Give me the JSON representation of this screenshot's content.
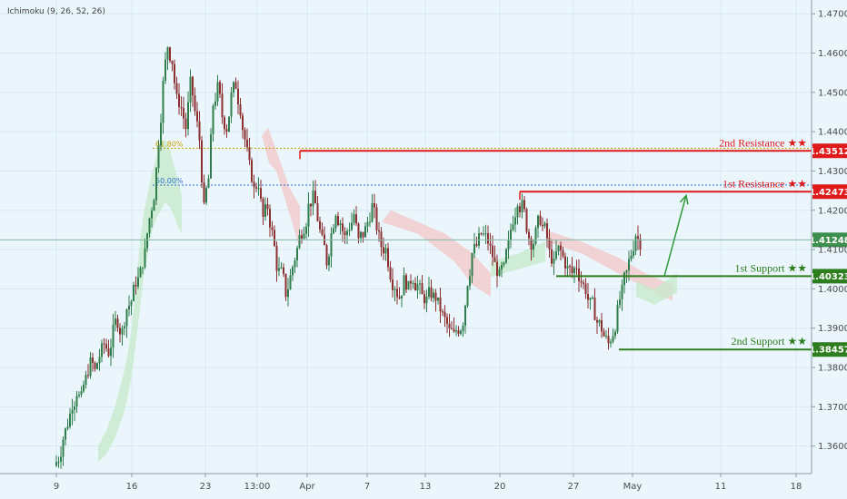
{
  "indicator_label": "Ichimoku (9, 26, 52, 26)",
  "colors": {
    "background": "#eaf6fb",
    "resistance": "#e0191b",
    "support": "#2e7d1e",
    "price_badge": "#3c8f4e",
    "candle_up": "#2f7d4a",
    "candle_down": "#8b2f2f",
    "cloud_green": "#c6e9c9",
    "cloud_red": "#f3c9cc",
    "arrow": "#2e9a3a",
    "fib_618": "#c8a000",
    "fib_50": "#2f6fd0"
  },
  "chart_data": {
    "type": "candlestick",
    "x_axis": {
      "tick_labels": [
        "9",
        "16",
        "23",
        "13:00",
        "Apr",
        "7",
        "13",
        "20",
        "27",
        "May",
        "11",
        "18"
      ]
    },
    "y_axis": {
      "range": [
        1.353,
        1.4735
      ],
      "tick_labels": [
        "1.47000",
        "1.46000",
        "1.45000",
        "1.44000",
        "1.43000",
        "1.42000",
        "1.41000",
        "1.40000",
        "1.39000",
        "1.38000",
        "1.37000",
        "1.36000"
      ],
      "tick_values": [
        1.47,
        1.46,
        1.45,
        1.44,
        1.43,
        1.42,
        1.41,
        1.4,
        1.39,
        1.38,
        1.37,
        1.36
      ]
    },
    "levels": [
      {
        "id": "res2",
        "name": "2nd Resistance ★★",
        "value": 1.43512,
        "badge": "1.43512",
        "kind": "resistance"
      },
      {
        "id": "res1",
        "name": "1st Resistance ★★",
        "value": 1.42473,
        "badge": "1.42473",
        "kind": "resistance"
      },
      {
        "id": "sup1",
        "name": "1st Support ★★",
        "value": 1.40323,
        "badge": "1.40323",
        "kind": "support"
      },
      {
        "id": "sup2",
        "name": "2nd Support ★★",
        "value": 1.38457,
        "badge": "1.38457",
        "kind": "support"
      }
    ],
    "current_price": {
      "value": 1.41248,
      "badge": "1.41248"
    },
    "fib_levels": [
      {
        "label": "61.80%",
        "value": 1.4358
      },
      {
        "label": "50.00%",
        "value": 1.4264
      }
    ],
    "price_path": [
      1.357,
      1.362,
      1.366,
      1.371,
      1.374,
      1.372,
      1.377,
      1.381,
      1.379,
      1.383,
      1.386,
      1.384,
      1.389,
      1.392,
      1.389,
      1.395,
      1.397,
      1.402,
      1.404,
      1.409,
      1.418,
      1.424,
      1.438,
      1.452,
      1.462,
      1.458,
      1.448,
      1.446,
      1.441,
      1.452,
      1.445,
      1.438,
      1.42,
      1.428,
      1.447,
      1.451,
      1.444,
      1.441,
      1.449,
      1.452,
      1.446,
      1.438,
      1.431,
      1.425,
      1.427,
      1.418,
      1.421,
      1.414,
      1.406,
      1.404,
      1.399,
      1.403,
      1.408,
      1.413,
      1.416,
      1.421,
      1.423,
      1.418,
      1.412,
      1.407,
      1.414,
      1.42,
      1.417,
      1.413,
      1.416,
      1.419,
      1.412,
      1.414,
      1.417,
      1.421,
      1.416,
      1.411,
      1.41,
      1.404,
      1.401,
      1.398,
      1.402,
      1.4,
      1.403,
      1.401,
      1.398,
      1.397,
      1.399,
      1.398,
      1.395,
      1.392,
      1.389,
      1.388,
      1.39,
      1.392,
      1.402,
      1.409,
      1.411,
      1.414,
      1.413,
      1.41,
      1.406,
      1.403,
      1.405,
      1.411,
      1.418,
      1.423,
      1.421,
      1.416,
      1.412,
      1.414,
      1.418,
      1.415,
      1.409,
      1.406,
      1.41,
      1.408,
      1.405,
      1.404,
      1.406,
      1.402,
      1.4,
      1.396,
      1.394,
      1.391,
      1.388,
      1.386,
      1.389,
      1.394,
      1.399,
      1.404,
      1.409,
      1.414,
      1.412
    ],
    "ichimoku_cloud": {
      "green_upper": [
        null,
        null,
        null,
        null,
        null,
        null,
        null,
        null,
        null,
        null,
        1.36,
        1.362,
        1.364,
        1.367,
        1.37,
        1.374,
        1.378,
        1.383,
        1.39,
        1.4,
        1.412,
        1.42,
        1.425,
        1.43,
        1.434,
        1.437,
        1.438,
        1.436,
        1.432,
        1.428,
        1.424
      ],
      "green_lower": [
        null,
        null,
        null,
        null,
        null,
        null,
        null,
        null,
        null,
        null,
        1.356,
        1.357,
        1.358,
        1.36,
        1.362,
        1.365,
        1.368,
        1.372,
        1.378,
        1.386,
        1.395,
        1.404,
        1.41,
        1.415,
        1.418,
        1.42,
        1.422,
        1.421,
        1.419,
        1.416,
        1.414
      ]
    }
  },
  "annotation_arrow": {
    "from_value": 1.4032,
    "to_value": 1.4247
  }
}
